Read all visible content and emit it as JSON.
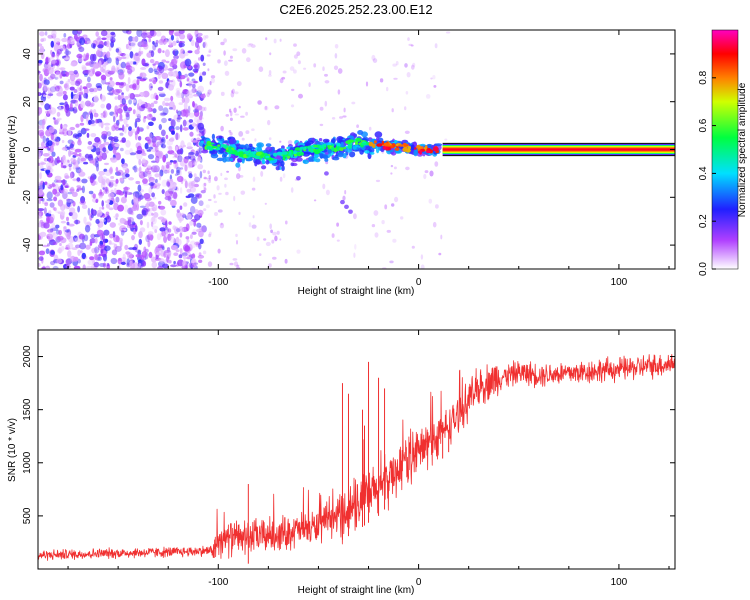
{
  "title": "C2E6.2025.252.23.00.E12",
  "chart_data": [
    {
      "type": "heatmap",
      "xlabel": "Height of straight line (km)",
      "ylabel": "Frequency (Hz)",
      "xlim": [
        -190,
        128
      ],
      "ylim": [
        -50,
        50
      ],
      "xticks": [
        -100,
        0,
        100
      ],
      "xtick_labels": [
        "-100",
        "0",
        "100"
      ],
      "yticks": [
        -40,
        -20,
        0,
        20,
        40
      ],
      "ytick_labels": [
        "-40",
        "-20",
        "0",
        "20",
        "40"
      ],
      "description_of_field": {
        "noise_region_km": [
          -190,
          -107
        ],
        "sparse_region_km": [
          -107,
          15
        ],
        "tone_start_km": 12,
        "tone_frequency_hz": 0,
        "tone_halfwidth_hz": 1.5,
        "echo_track": [
          [
            -108,
            2
          ],
          [
            -95,
            0
          ],
          [
            -85,
            -2
          ],
          [
            -70,
            -3
          ],
          [
            -55,
            0
          ],
          [
            -40,
            1
          ],
          [
            -30,
            3
          ],
          [
            -20,
            2
          ],
          [
            -10,
            1
          ],
          [
            0,
            0
          ],
          [
            10,
            0
          ]
        ]
      },
      "colorbar": {
        "label": "Normalized spectral amplitude",
        "range": [
          0,
          1
        ],
        "ticks": [
          0,
          0.2,
          0.4,
          0.6,
          0.8
        ],
        "tick_labels": [
          "0.0",
          "0.2",
          "0.4",
          "0.6",
          "0.8"
        ],
        "stops": [
          {
            "v": 0.0,
            "color": "#ffffff"
          },
          {
            "v": 0.12,
            "color": "#b040ff"
          },
          {
            "v": 0.25,
            "color": "#2020ff"
          },
          {
            "v": 0.4,
            "color": "#00e0ff"
          },
          {
            "v": 0.55,
            "color": "#00ff40"
          },
          {
            "v": 0.7,
            "color": "#d0ff00"
          },
          {
            "v": 0.8,
            "color": "#ff8000"
          },
          {
            "v": 0.9,
            "color": "#ff0000"
          },
          {
            "v": 1.0,
            "color": "#ff00c0"
          }
        ]
      }
    },
    {
      "type": "line",
      "xlabel": "Height of straight line (km)",
      "ylabel": "SNR (10 * v/v)",
      "xlim": [
        -190,
        128
      ],
      "ylim": [
        0,
        2250
      ],
      "xticks": [
        -100,
        0,
        100
      ],
      "xtick_labels": [
        "-100",
        "0",
        "100"
      ],
      "yticks": [
        500,
        1000,
        1500,
        2000
      ],
      "ytick_labels": [
        "500",
        "1000",
        "1500",
        "2000"
      ],
      "series": [
        {
          "name": "SNR",
          "color": "#f03030",
          "envelope_x": [
            -190,
            -150,
            -120,
            -103,
            -100,
            -85,
            -70,
            -50,
            -40,
            -30,
            -20,
            -15,
            -10,
            -5,
            0,
            5,
            10,
            15,
            20,
            25,
            30,
            40,
            50,
            60,
            70,
            80,
            90,
            100,
            110,
            120,
            128
          ],
          "envelope_y": [
            130,
            150,
            160,
            175,
            280,
            300,
            330,
            400,
            500,
            620,
            750,
            850,
            950,
            1050,
            1100,
            1180,
            1250,
            1350,
            1450,
            1600,
            1720,
            1800,
            1850,
            1830,
            1840,
            1850,
            1870,
            1880,
            1900,
            1920,
            1940
          ],
          "spikes": [
            [
              -85,
              800
            ],
            [
              -38,
              1750
            ],
            [
              -35,
              1650
            ],
            [
              -28,
              1500
            ],
            [
              -27,
              1350
            ],
            [
              -25,
              1950
            ],
            [
              -20,
              1800
            ],
            [
              -17,
              1700
            ],
            [
              12,
              1380
            ],
            [
              15,
              1300
            ]
          ]
        }
      ]
    }
  ]
}
